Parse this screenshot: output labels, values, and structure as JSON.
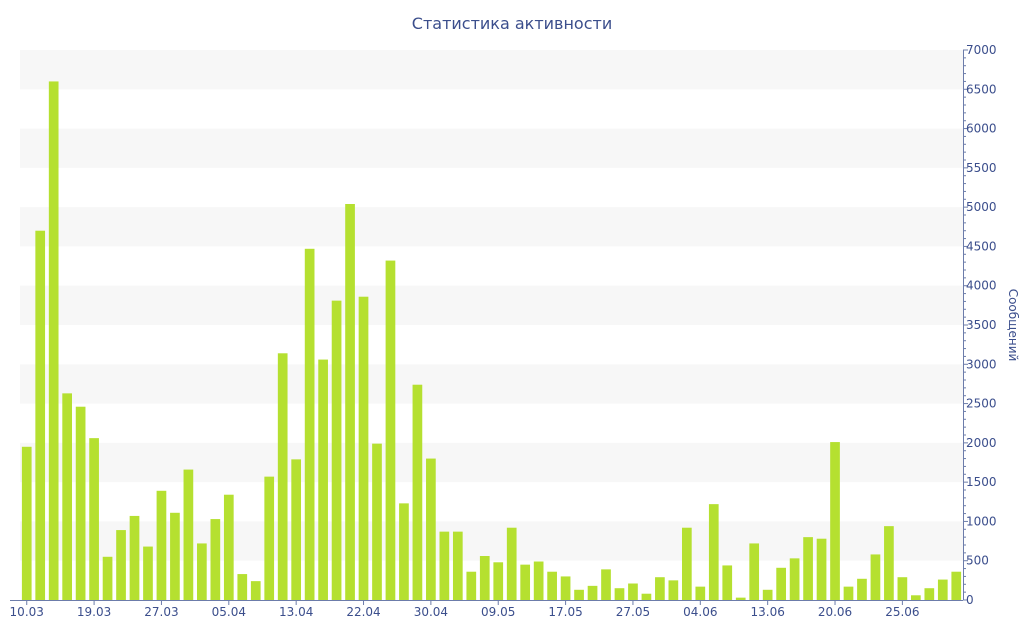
{
  "chart_data": {
    "type": "bar",
    "title": "Статистика активности",
    "ylabel": "Сообщений",
    "y_axis_position": "right",
    "ylim": [
      0,
      7000
    ],
    "y_ticks": [
      0,
      500,
      1000,
      1500,
      2000,
      2500,
      3000,
      3500,
      4000,
      4500,
      5000,
      5500,
      6000,
      6500,
      7000
    ],
    "x_tick_labels": [
      {
        "index": 0,
        "label": "10.03"
      },
      {
        "index": 5,
        "label": "19.03"
      },
      {
        "index": 10,
        "label": "27.03"
      },
      {
        "index": 15,
        "label": "05.04"
      },
      {
        "index": 20,
        "label": "13.04"
      },
      {
        "index": 25,
        "label": "22.04"
      },
      {
        "index": 30,
        "label": "30.04"
      },
      {
        "index": 35,
        "label": "09.05"
      },
      {
        "index": 40,
        "label": "17.05"
      },
      {
        "index": 45,
        "label": "27.05"
      },
      {
        "index": 50,
        "label": "04.06"
      },
      {
        "index": 55,
        "label": "13.06"
      },
      {
        "index": 60,
        "label": "20.06"
      },
      {
        "index": 65,
        "label": "25.06"
      }
    ],
    "grid": "alternating horizontal bands",
    "bar_color": "#b5e030",
    "band_color": "#f7f7f7",
    "text_color": "#3b4e8c",
    "values": [
      1950,
      4700,
      6600,
      2630,
      2460,
      2060,
      550,
      890,
      1070,
      680,
      1390,
      1110,
      1660,
      720,
      1030,
      1340,
      330,
      240,
      1570,
      3140,
      1790,
      4470,
      3060,
      3810,
      5040,
      3860,
      1990,
      4320,
      1230,
      2740,
      1800,
      870,
      870,
      360,
      560,
      480,
      920,
      450,
      490,
      360,
      300,
      130,
      180,
      390,
      150,
      210,
      80,
      290,
      250,
      920,
      170,
      1220,
      440,
      30,
      720,
      130,
      410,
      530,
      800,
      780,
      2010,
      170,
      270,
      580,
      940,
      290,
      60,
      150,
      260,
      360
    ]
  }
}
